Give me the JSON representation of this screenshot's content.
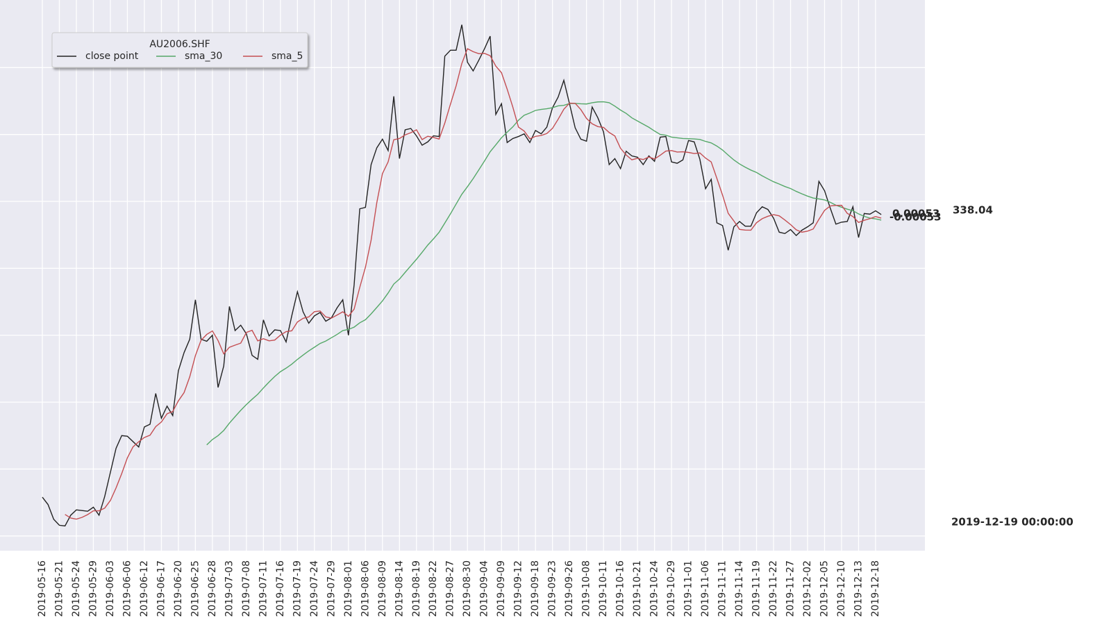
{
  "chart_data": {
    "type": "line",
    "title": "AU2006.SHF",
    "legend": "upper left",
    "grid": true,
    "categories": [
      "2019-05-16",
      null,
      null,
      "2019-05-21",
      null,
      null,
      "2019-05-24",
      null,
      null,
      "2019-05-29",
      null,
      null,
      "2019-06-03",
      null,
      null,
      "2019-06-06",
      null,
      null,
      "2019-06-12",
      null,
      null,
      "2019-06-17",
      null,
      null,
      "2019-06-20",
      null,
      null,
      "2019-06-25",
      null,
      null,
      "2019-06-28",
      null,
      null,
      "2019-07-03",
      null,
      null,
      "2019-07-08",
      null,
      null,
      "2019-07-11",
      null,
      null,
      "2019-07-16",
      null,
      null,
      "2019-07-19",
      null,
      null,
      "2019-07-24",
      null,
      null,
      "2019-07-29",
      null,
      null,
      "2019-08-01",
      null,
      null,
      "2019-08-06",
      null,
      null,
      "2019-08-09",
      null,
      null,
      "2019-08-14",
      null,
      null,
      "2019-08-19",
      null,
      null,
      "2019-08-22",
      null,
      null,
      "2019-08-27",
      null,
      null,
      "2019-08-30",
      null,
      null,
      "2019-09-04",
      null,
      null,
      "2019-09-09",
      null,
      null,
      "2019-09-12",
      null,
      null,
      "2019-09-18",
      null,
      null,
      "2019-09-23",
      null,
      null,
      "2019-09-26",
      null,
      null,
      "2019-10-08",
      null,
      null,
      "2019-10-11",
      null,
      null,
      "2019-10-16",
      null,
      null,
      "2019-10-21",
      null,
      null,
      "2019-10-24",
      null,
      null,
      "2019-10-29",
      null,
      null,
      "2019-11-01",
      null,
      null,
      "2019-11-06",
      null,
      null,
      "2019-11-11",
      null,
      null,
      "2019-11-14",
      null,
      null,
      "2019-11-19",
      null,
      null,
      "2019-11-22",
      null,
      null,
      "2019-11-27",
      null,
      null,
      "2019-12-02",
      null,
      null,
      "2019-12-05",
      null,
      null,
      "2019-12-10",
      null,
      null,
      "2019-12-13",
      null,
      null,
      "2019-12-18",
      null
    ],
    "series": [
      {
        "name": "close point",
        "color": "#222222",
        "values": [
          295.8,
          294.7,
          292.5,
          291.6,
          291.5,
          293.1,
          293.9,
          293.8,
          293.7,
          294.3,
          293.1,
          295.9,
          299.5,
          303.1,
          305.0,
          304.9,
          304.1,
          303.3,
          306.3,
          306.7,
          311.3,
          307.6,
          309.4,
          308.0,
          314.7,
          317.4,
          319.4,
          325.3,
          319.4,
          319.1,
          320.0,
          312.2,
          315.4,
          324.3,
          320.7,
          321.5,
          320.2,
          317.0,
          316.4,
          322.3,
          319.9,
          320.8,
          320.7,
          319.0,
          322.9,
          326.5,
          323.5,
          321.8,
          322.9,
          323.4,
          322.1,
          322.6,
          324.1,
          325.3,
          320.0,
          327.5,
          338.9,
          339.1,
          345.5,
          348.0,
          349.3,
          347.6,
          355.7,
          346.4,
          350.7,
          350.9,
          349.8,
          348.4,
          348.9,
          349.8,
          349.7,
          361.7,
          362.6,
          362.6,
          366.4,
          360.8,
          359.5,
          361.1,
          362.8,
          364.7,
          353.0,
          354.6,
          348.8,
          349.4,
          349.7,
          350.1,
          348.8,
          350.6,
          350.1,
          351.1,
          354.0,
          355.6,
          358.1,
          354.6,
          351.0,
          349.3,
          349.0,
          354.1,
          352.5,
          350.4,
          345.5,
          346.4,
          344.9,
          347.5,
          346.8,
          346.6,
          345.5,
          346.8,
          346.0,
          349.6,
          349.7,
          345.9,
          345.7,
          346.2,
          349.1,
          348.9,
          346.3,
          341.9,
          343.3,
          336.8,
          336.4,
          332.7,
          336.2,
          337.0,
          336.3,
          336.3,
          338.3,
          339.2,
          338.8,
          337.5,
          335.4,
          335.2,
          335.8,
          334.9,
          335.7,
          336.2,
          336.8,
          343.0,
          341.6,
          339.0,
          336.6,
          336.9,
          337.0,
          339.2,
          334.6,
          338.2,
          338.1,
          338.6,
          338.04
        ]
      },
      {
        "name": "sma_30",
        "color": "#55a868",
        "values": [
          null,
          null,
          null,
          null,
          null,
          null,
          null,
          null,
          null,
          null,
          null,
          null,
          null,
          null,
          null,
          null,
          null,
          null,
          null,
          null,
          null,
          null,
          null,
          null,
          null,
          null,
          null,
          null,
          null,
          303.61,
          304.42,
          305.0,
          305.77,
          306.86,
          307.83,
          308.78,
          309.65,
          310.43,
          311.18,
          312.12,
          313.01,
          313.84,
          314.55,
          315.08,
          315.67,
          316.39,
          317.04,
          317.66,
          318.21,
          318.77,
          319.13,
          319.63,
          320.12,
          320.69,
          320.87,
          321.21,
          321.86,
          322.32,
          323.19,
          324.15,
          325.13,
          326.31,
          327.65,
          328.39,
          329.39,
          330.37,
          331.35,
          332.4,
          333.48,
          334.4,
          335.39,
          336.76,
          338.15,
          339.61,
          341.06,
          342.2,
          343.4,
          344.71,
          346.04,
          347.42,
          348.45,
          349.51,
          350.34,
          351.14,
          352.13,
          352.88,
          353.21,
          353.6,
          353.75,
          353.85,
          354.01,
          354.28,
          354.36,
          354.63,
          354.64,
          354.59,
          354.56,
          354.75,
          354.87,
          354.89,
          354.75,
          354.24,
          353.65,
          353.15,
          352.49,
          352.02,
          351.55,
          351.08,
          350.52,
          350.01,
          349.9,
          349.61,
          349.51,
          349.4,
          349.38,
          349.34,
          349.26,
          348.97,
          348.74,
          348.27,
          347.68,
          346.92,
          346.19,
          345.6,
          345.11,
          344.68,
          344.32,
          343.82,
          343.37,
          342.94,
          342.6,
          342.23,
          341.92,
          341.5,
          341.13,
          340.79,
          340.5,
          340.37,
          340.22,
          339.87,
          339.43,
          339.13,
          338.84,
          338.61,
          338.13,
          337.77,
          337.5,
          337.39,
          337.21
        ]
      },
      {
        "name": "sma_5",
        "color": "#c44e52",
        "values": [
          null,
          null,
          null,
          null,
          293.22,
          292.68,
          292.52,
          292.78,
          293.2,
          293.76,
          293.76,
          294.16,
          295.3,
          297.18,
          299.32,
          301.68,
          303.32,
          304.08,
          304.72,
          305.06,
          306.34,
          307.04,
          308.26,
          308.6,
          310.2,
          311.42,
          313.78,
          316.96,
          319.24,
          320.12,
          320.64,
          319.2,
          317.22,
          318.2,
          318.52,
          318.82,
          320.42,
          320.74,
          319.16,
          319.48,
          319.16,
          319.28,
          320.02,
          320.54,
          320.66,
          321.98,
          322.52,
          322.74,
          323.52,
          323.62,
          322.74,
          322.56,
          323.02,
          323.5,
          322.82,
          323.9,
          327.16,
          330.16,
          334.2,
          339.8,
          344.16,
          345.9,
          349.22,
          349.4,
          349.94,
          350.26,
          350.7,
          349.24,
          349.74,
          349.56,
          349.32,
          351.7,
          354.54,
          357.28,
          360.6,
          362.82,
          362.38,
          362.08,
          362.12,
          361.78,
          360.22,
          359.24,
          356.78,
          354.1,
          351.1,
          350.52,
          349.36,
          349.72,
          349.86,
          350.14,
          350.92,
          352.28,
          353.78,
          354.68,
          354.66,
          353.72,
          352.4,
          351.6,
          351.18,
          351.06,
          350.3,
          349.78,
          347.94,
          346.94,
          346.22,
          346.44,
          346.26,
          346.64,
          346.34,
          346.9,
          347.52,
          347.6,
          347.38,
          347.42,
          347.32,
          347.16,
          347.24,
          346.48,
          345.9,
          343.44,
          340.94,
          338.22,
          337.08,
          335.82,
          335.72,
          335.7,
          336.82,
          337.42,
          337.78,
          338.02,
          337.84,
          337.22,
          336.54,
          335.76,
          335.4,
          335.56,
          335.88,
          337.32,
          338.66,
          339.32,
          339.4,
          339.42,
          338.22,
          337.74,
          336.86,
          337.18,
          337.42,
          337.74,
          337.51
        ]
      }
    ],
    "ylim": [
      287.8,
      370.1
    ],
    "yticks": [
      290,
      300,
      310,
      320,
      330,
      340,
      350,
      360
    ],
    "annotations": [
      "0.00053",
      "-0.00053",
      "338.04",
      "2019-12-19 00:00:00"
    ]
  }
}
